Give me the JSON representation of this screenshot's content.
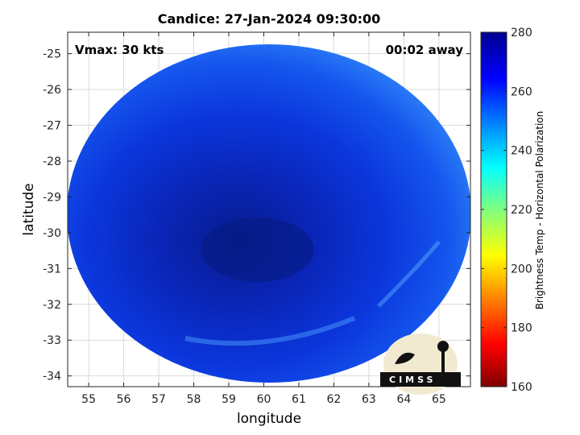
{
  "title": "Candice: 27-Jan-2024 09:30:00",
  "annotations": {
    "vmax": "Vmax: 30 kts",
    "away": "00:02 away"
  },
  "xaxis": {
    "label": "longitude",
    "ticks": [
      55,
      56,
      57,
      58,
      59,
      60,
      61,
      62,
      63,
      64,
      65
    ],
    "range": [
      54.4,
      65.9
    ]
  },
  "yaxis": {
    "label": "latitude",
    "ticks": [
      -25,
      -26,
      -27,
      -28,
      -29,
      -30,
      -31,
      -32,
      -33,
      -34
    ],
    "range": [
      -34.3,
      -24.4
    ]
  },
  "colorbar": {
    "label": "Brightness Temp - Horizontal Polarization",
    "ticks": [
      280,
      260,
      240,
      220,
      200,
      180,
      160
    ],
    "range": [
      160,
      280
    ],
    "colormap": "jet"
  },
  "logo": {
    "text": "CIMSS"
  },
  "colors": {
    "core": "#061a8c",
    "ring": "#0a2fd4",
    "edge": "#1a6af5",
    "grid": "#d9d9d9"
  }
}
